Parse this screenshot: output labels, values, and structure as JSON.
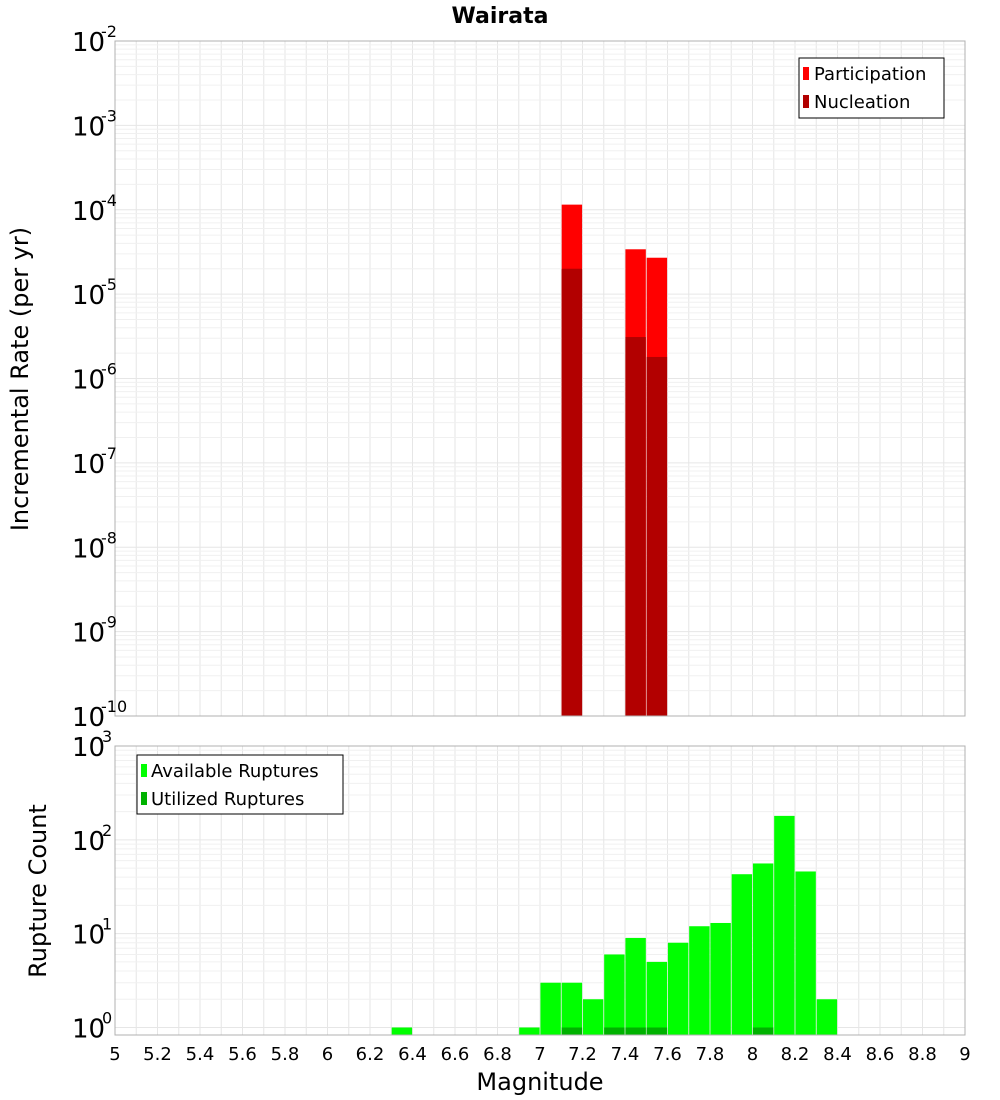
{
  "chart_data": [
    {
      "type": "bar",
      "title": "Wairata",
      "xlabel": "",
      "ylabel": "Incremental Rate (per yr)",
      "yscale": "log",
      "xlim": [
        5,
        9
      ],
      "ylim_exponents": [
        -10,
        -2
      ],
      "ytick_base": "10",
      "ytick_exponents": [
        "-10",
        "-9",
        "-8",
        "-7",
        "-6",
        "-5",
        "-4",
        "-3",
        "-2"
      ],
      "legend_position": "top-right",
      "series": [
        {
          "name": "Participation",
          "color": "#ff0000",
          "x": [
            7.15,
            7.45,
            7.55
          ],
          "values": [
            0.000115,
            3.4e-05,
            2.7e-05
          ]
        },
        {
          "name": "Nucleation",
          "color": "#b20000",
          "x": [
            7.15,
            7.45,
            7.55
          ],
          "values": [
            2e-05,
            3.1e-06,
            1.8e-06
          ]
        }
      ]
    },
    {
      "type": "bar",
      "title": "",
      "xlabel": "Magnitude",
      "ylabel": "Rupture Count",
      "yscale": "log",
      "xlim": [
        5,
        9
      ],
      "ylim_exponents": [
        -0.08,
        3
      ],
      "ytick_base": "10",
      "ytick_exponents": [
        "0",
        "1",
        "2",
        "3"
      ],
      "xticks": [
        "5",
        "5.2",
        "5.4",
        "5.6",
        "5.8",
        "6",
        "6.2",
        "6.4",
        "6.6",
        "6.8",
        "7",
        "7.2",
        "7.4",
        "7.6",
        "7.8",
        "8",
        "8.2",
        "8.4",
        "8.6",
        "8.8",
        "9"
      ],
      "legend_position": "top-left",
      "series": [
        {
          "name": "Available Ruptures",
          "color": "#00ff00",
          "x": [
            6.35,
            6.95,
            7.05,
            7.15,
            7.25,
            7.35,
            7.45,
            7.55,
            7.65,
            7.75,
            7.85,
            7.95,
            8.05,
            8.15,
            8.25,
            8.35
          ],
          "values": [
            1,
            1,
            3,
            3,
            2,
            6,
            9,
            5,
            8,
            12,
            13,
            43,
            56,
            180,
            46,
            2
          ]
        },
        {
          "name": "Utilized Ruptures",
          "color": "#00b200",
          "x": [
            7.15,
            7.35,
            7.45,
            7.55,
            8.05
          ],
          "values": [
            1,
            1,
            1,
            1,
            1
          ]
        }
      ]
    }
  ]
}
